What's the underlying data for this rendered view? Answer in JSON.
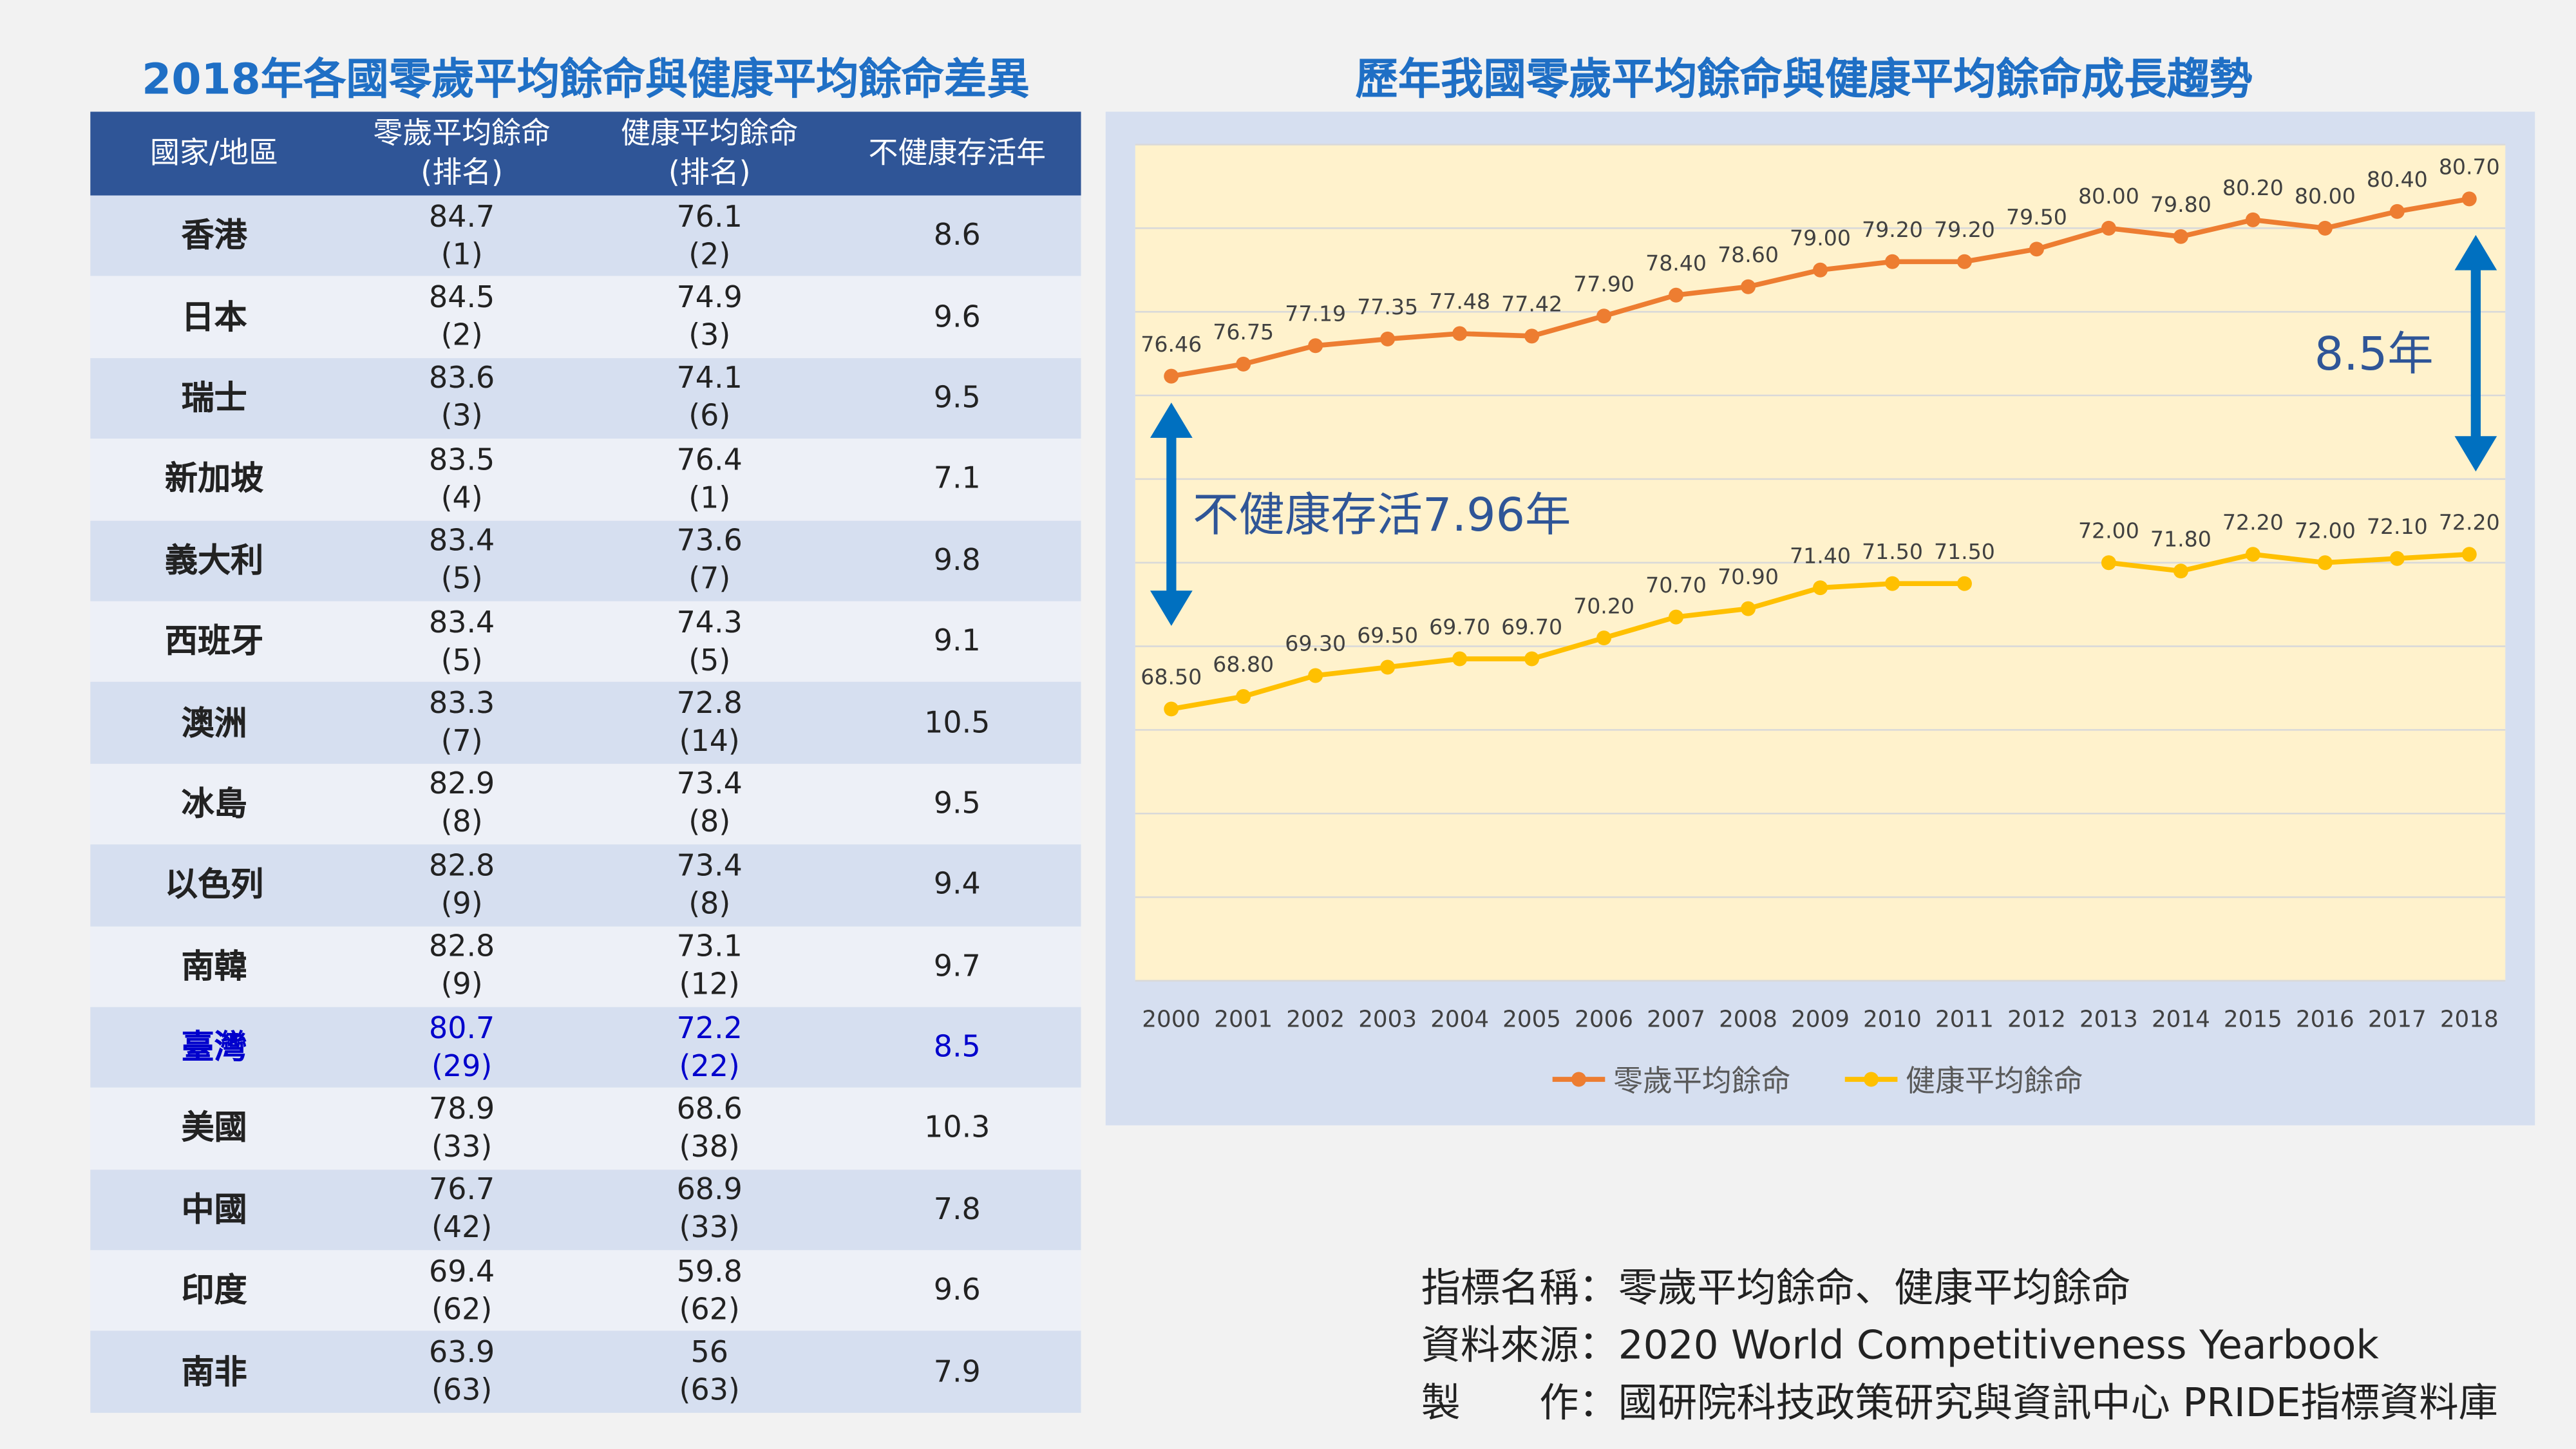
{
  "table": {
    "title": "2018年各國零歲平均餘命與健康平均餘命差異",
    "header": [
      [
        "國家/地區"
      ],
      [
        "零歲平均餘命",
        "(排名)"
      ],
      [
        "健康平均餘命",
        "(排名)"
      ],
      [
        "不健康存活年"
      ]
    ],
    "rows": [
      {
        "country": "香港",
        "life": "84.7",
        "life_rank": "(1)",
        "healthy": "76.1",
        "healthy_rank": "(2)",
        "unhealthy": "8.6"
      },
      {
        "country": "日本",
        "life": "84.5",
        "life_rank": "(2)",
        "healthy": "74.9",
        "healthy_rank": "(3)",
        "unhealthy": "9.6"
      },
      {
        "country": "瑞士",
        "life": "83.6",
        "life_rank": "(3)",
        "healthy": "74.1",
        "healthy_rank": "(6)",
        "unhealthy": "9.5"
      },
      {
        "country": "新加坡",
        "life": "83.5",
        "life_rank": "(4)",
        "healthy": "76.4",
        "healthy_rank": "(1)",
        "unhealthy": "7.1"
      },
      {
        "country": "義大利",
        "life": "83.4",
        "life_rank": "(5)",
        "healthy": "73.6",
        "healthy_rank": "(7)",
        "unhealthy": "9.8"
      },
      {
        "country": "西班牙",
        "life": "83.4",
        "life_rank": "(5)",
        "healthy": "74.3",
        "healthy_rank": "(5)",
        "unhealthy": "9.1"
      },
      {
        "country": "澳洲",
        "life": "83.3",
        "life_rank": "(7)",
        "healthy": "72.8",
        "healthy_rank": "(14)",
        "unhealthy": "10.5"
      },
      {
        "country": "冰島",
        "life": "82.9",
        "life_rank": "(8)",
        "healthy": "73.4",
        "healthy_rank": "(8)",
        "unhealthy": "9.5"
      },
      {
        "country": "以色列",
        "life": "82.8",
        "life_rank": "(9)",
        "healthy": "73.4",
        "healthy_rank": "(8)",
        "unhealthy": "9.4"
      },
      {
        "country": "南韓",
        "life": "82.8",
        "life_rank": "(9)",
        "healthy": "73.1",
        "healthy_rank": "(12)",
        "unhealthy": "9.7"
      },
      {
        "country": "臺灣",
        "life": "80.7",
        "life_rank": "(29)",
        "healthy": "72.2",
        "healthy_rank": "(22)",
        "unhealthy": "8.5",
        "highlight": true
      },
      {
        "country": "美國",
        "life": "78.9",
        "life_rank": "(33)",
        "healthy": "68.6",
        "healthy_rank": "(38)",
        "unhealthy": "10.3"
      },
      {
        "country": "中國",
        "life": "76.7",
        "life_rank": "(42)",
        "healthy": "68.9",
        "healthy_rank": "(33)",
        "unhealthy": "7.8"
      },
      {
        "country": "印度",
        "life": "69.4",
        "life_rank": "(62)",
        "healthy": "59.8",
        "healthy_rank": "(62)",
        "unhealthy": "9.6"
      },
      {
        "country": "南非",
        "life": "63.9",
        "life_rank": "(63)",
        "healthy": "56",
        "healthy_rank": "(63)",
        "unhealthy": "7.9"
      }
    ]
  },
  "chart_data": {
    "type": "line",
    "title": "歷年我國零歲平均餘命與健康平均餘命成長趨勢",
    "categories": [
      "2000",
      "2001",
      "2002",
      "2003",
      "2004",
      "2005",
      "2006",
      "2007",
      "2008",
      "2009",
      "2010",
      "2011",
      "2012",
      "2013",
      "2014",
      "2015",
      "2016",
      "2017",
      "2018"
    ],
    "series": [
      {
        "name": "零歲平均餘命",
        "color": "#ed7d31",
        "values": [
          76.46,
          76.75,
          77.19,
          77.35,
          77.48,
          77.42,
          77.9,
          78.4,
          78.6,
          79.0,
          79.2,
          79.2,
          79.5,
          80.0,
          79.8,
          80.2,
          80.0,
          80.4,
          80.7
        ],
        "value_labels": [
          "76.46",
          "76.75",
          "77.19",
          "77.35",
          "77.48",
          "77.42",
          "77.90",
          "78.40",
          "78.60",
          "79.00",
          "79.20",
          "79.20",
          "79.50",
          "80.00",
          "79.80",
          "80.20",
          "80.00",
          "80.40",
          "80.70"
        ]
      },
      {
        "name": "健康平均餘命",
        "color": "#ffc000",
        "values": [
          68.5,
          68.8,
          69.3,
          69.5,
          69.7,
          69.7,
          70.2,
          70.7,
          70.9,
          71.4,
          71.5,
          71.5,
          null,
          72.0,
          71.8,
          72.2,
          72.0,
          72.1,
          72.2
        ],
        "value_labels": [
          "68.50",
          "68.80",
          "69.30",
          "69.50",
          "69.70",
          "69.70",
          "70.20",
          "70.70",
          "70.90",
          "71.40",
          "71.50",
          "71.50",
          null,
          "72.00",
          "71.80",
          "72.20",
          "72.00",
          "72.10",
          "72.20"
        ]
      }
    ],
    "ylim": [
      62,
      82
    ],
    "yticks": [
      62,
      64,
      66,
      68,
      70,
      72,
      74,
      76,
      78,
      80,
      82
    ],
    "grid": true,
    "legend": "bottom",
    "annotations": [
      "不健康存活7.96年",
      "8.5年"
    ]
  },
  "footer": [
    "指標名稱：零歲平均餘命、健康平均餘命",
    "資料來源：2020 World Competitiveness Yearbook",
    "製　　作：國研院科技政策研究與資訊中心 PRIDE指標資料庫"
  ]
}
